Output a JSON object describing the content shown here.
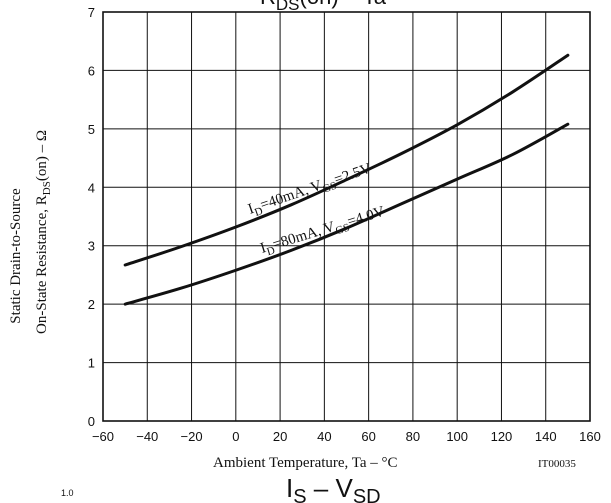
{
  "chart_data": [
    {
      "type": "line",
      "title_main": "R",
      "title_sub": "DS",
      "title_rest": "(on) – Ta",
      "xlabel": "Ambient Temperature, Ta  –  °C",
      "ylabel_line1": "Static Drain-to-Source",
      "ylabel_line2": "On-State Resistance, R",
      "ylabel_sub": "DS",
      "ylabel_rest": "(on)  –  Ω",
      "xlim": [
        -60,
        160
      ],
      "ylim": [
        0,
        7
      ],
      "x_ticks": [
        -60,
        -40,
        -20,
        0,
        20,
        40,
        60,
        80,
        100,
        120,
        140,
        160
      ],
      "y_ticks": [
        0,
        1,
        2,
        3,
        4,
        5,
        6,
        7
      ],
      "x_tick_labels": [
        "−60",
        "−40",
        "−20",
        "0",
        "20",
        "40",
        "60",
        "80",
        "100",
        "120",
        "140",
        "160"
      ],
      "y_tick_labels": [
        "0",
        "1",
        "2",
        "3",
        "4",
        "5",
        "6",
        "7"
      ],
      "grid": true,
      "figure_id": "IT00035",
      "series": [
        {
          "name": "ID=40mA, VGS=2.5V",
          "label_parts": [
            "I",
            "D",
            "=40mA, V",
            "GS",
            "=2.5V"
          ],
          "x": [
            -50,
            -25,
            0,
            25,
            50,
            75,
            100,
            125,
            150
          ],
          "y": [
            2.67,
            2.98,
            3.32,
            3.7,
            4.13,
            4.58,
            5.07,
            5.63,
            6.26
          ]
        },
        {
          "name": "ID=80mA, VGS=4.0V",
          "label_parts": [
            "I",
            "D",
            "=80mA, V",
            "GS",
            "=4.0V"
          ],
          "x": [
            -50,
            -25,
            0,
            25,
            50,
            75,
            100,
            125,
            150
          ],
          "y": [
            2.0,
            2.27,
            2.58,
            2.92,
            3.3,
            3.72,
            4.14,
            4.56,
            5.08
          ]
        }
      ]
    },
    {
      "type": "line",
      "title_main": "I",
      "title_sub": "S",
      "title_mid": " – V",
      "title_sub2": "SD",
      "y_top_tick_label": "1.0"
    }
  ]
}
